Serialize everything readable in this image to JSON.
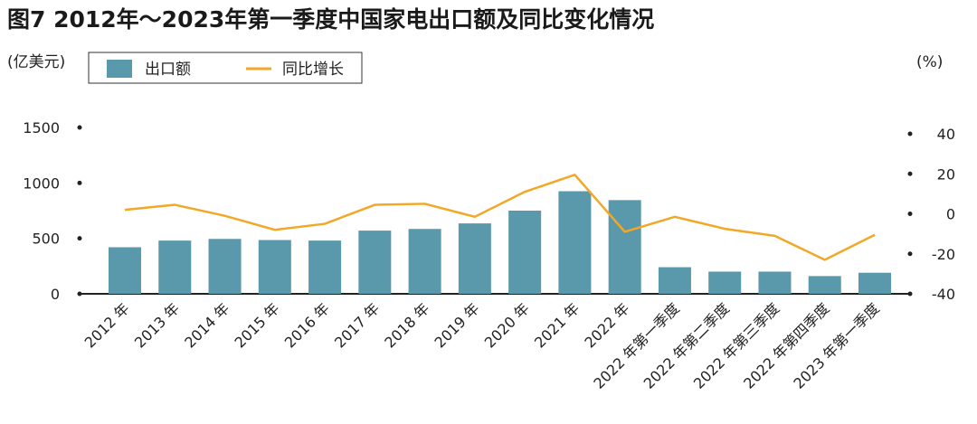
{
  "chart_data": {
    "type": "bar",
    "title": "图7 2012年～2023年第一季度中国家电出口额及同比变化情况",
    "left_unit": "(亿美元)",
    "right_unit": "(%)",
    "categories": [
      "2012 年",
      "2013 年",
      "2014 年",
      "2015 年",
      "2016 年",
      "2017 年",
      "2018 年",
      "2019 年",
      "2020 年",
      "2021 年",
      "2022 年",
      "2022 年第一季度",
      "2022 年第二季度",
      "2022 年第三季度",
      "2022 年第四季度",
      "2023 年第一季度"
    ],
    "series": [
      {
        "name": "出口额",
        "type": "bar",
        "axis": "left",
        "color": "#5a98ab",
        "values": [
          420,
          480,
          495,
          485,
          480,
          570,
          585,
          635,
          750,
          925,
          845,
          240,
          200,
          200,
          160,
          190
        ]
      },
      {
        "name": "同比增长",
        "type": "line",
        "axis": "right",
        "color": "#f2a726",
        "values": [
          2,
          4.5,
          -1,
          -8,
          -5,
          4.5,
          5,
          -1.5,
          11,
          19.5,
          -9,
          -1.5,
          -7.5,
          -11,
          -23,
          -10.5
        ]
      }
    ],
    "y_left": {
      "ticks": [
        "0",
        "500",
        "1000",
        "1500"
      ],
      "range": [
        0,
        1500
      ]
    },
    "y_right": {
      "ticks": [
        "-40",
        "-20",
        "0",
        "20",
        "40"
      ],
      "range": [
        -40,
        40
      ]
    },
    "legend_position": "top-left",
    "grid": false
  }
}
